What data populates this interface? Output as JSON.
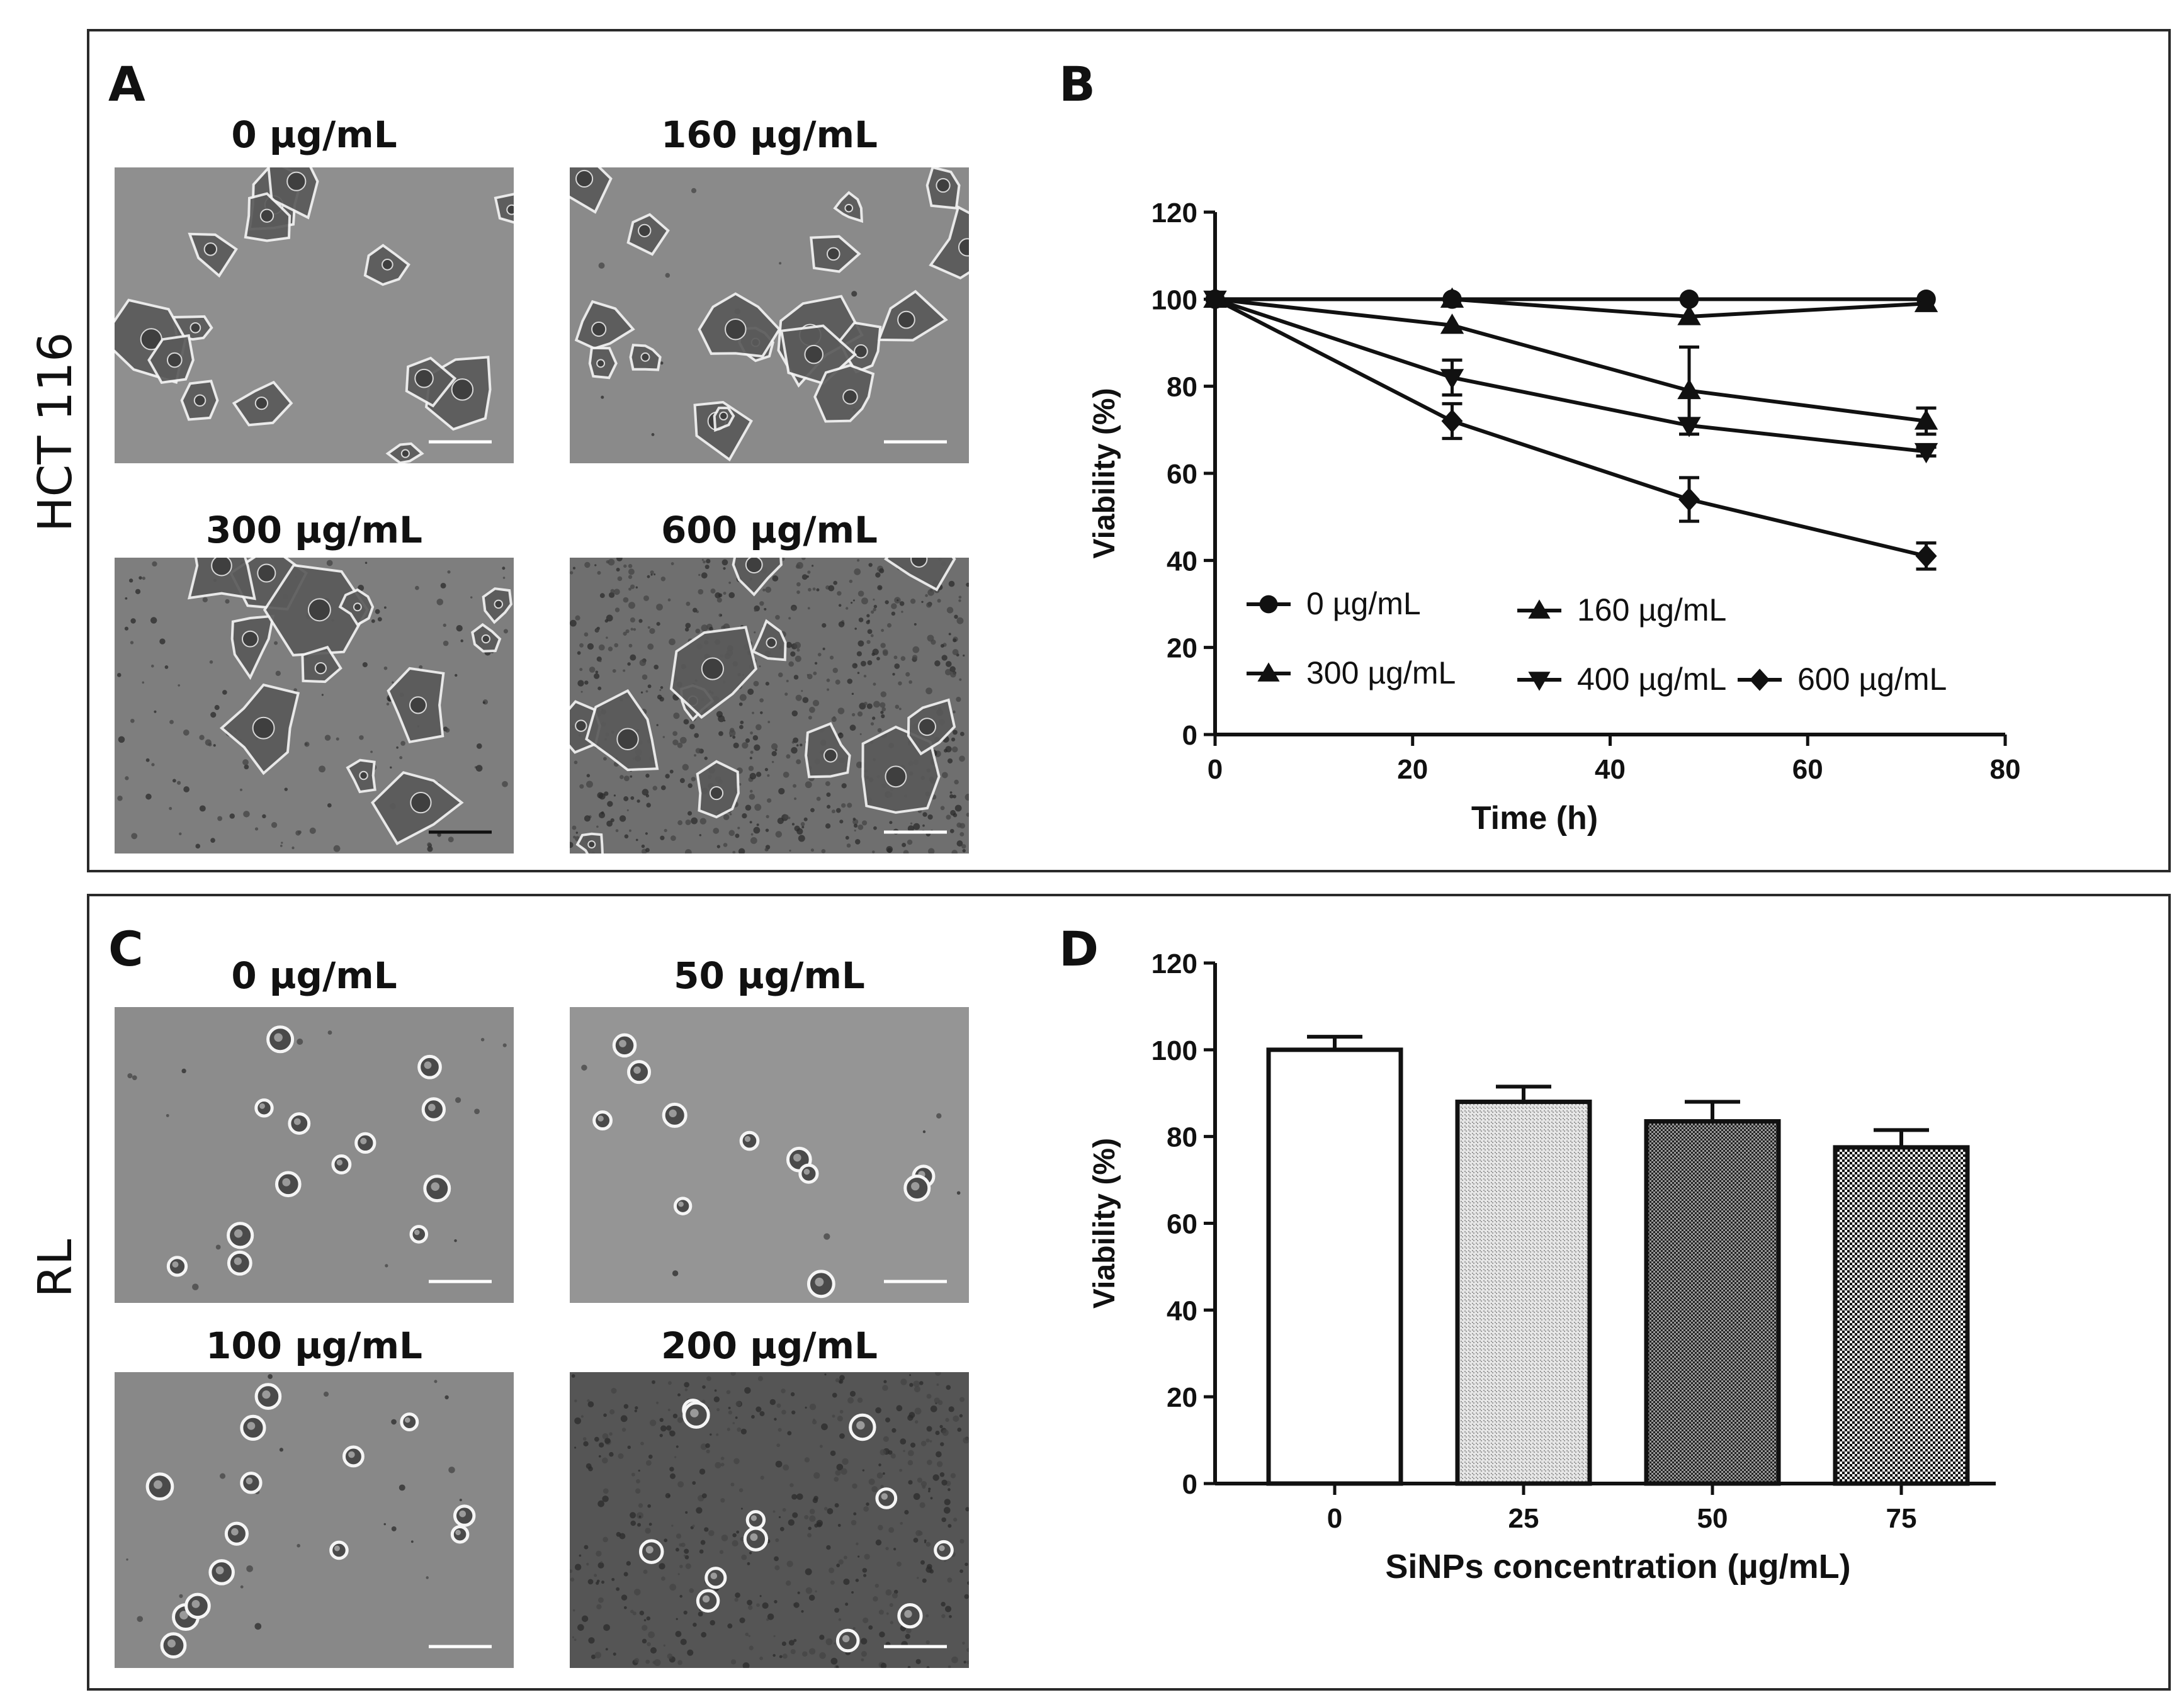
{
  "rows": [
    {
      "cell_line": "HCT 116"
    },
    {
      "cell_line": "RL"
    }
  ],
  "panels": {
    "A": {
      "letter": "A",
      "images": [
        {
          "label": "0 µg/mL"
        },
        {
          "label": "160 µg/mL"
        },
        {
          "label": "300 µg/mL"
        },
        {
          "label": "600 µg/mL"
        }
      ]
    },
    "B": {
      "letter": "B"
    },
    "C": {
      "letter": "C",
      "images": [
        {
          "label": "0 µg/mL"
        },
        {
          "label": "50 µg/mL"
        },
        {
          "label": "100 µg/mL"
        },
        {
          "label": "200 µg/mL"
        }
      ]
    },
    "D": {
      "letter": "D"
    }
  },
  "chart_data": [
    {
      "id": "B",
      "type": "line",
      "xlabel": "Time (h)",
      "ylabel": "Viability (%)",
      "xlim": [
        0,
        80
      ],
      "ylim": [
        0,
        120
      ],
      "xticks": [
        0,
        20,
        40,
        60,
        80
      ],
      "yticks": [
        0,
        20,
        40,
        60,
        80,
        100,
        120
      ],
      "x": [
        0,
        24,
        48,
        72
      ],
      "series": [
        {
          "name": "0 µg/mL",
          "marker": "circle",
          "values": [
            100,
            100,
            100,
            100
          ],
          "err": [
            0,
            0,
            0,
            0
          ]
        },
        {
          "name": "160 µg/mL",
          "marker": "triangle-up",
          "values": [
            100,
            100,
            96,
            99
          ],
          "err": [
            0,
            0,
            0,
            0
          ]
        },
        {
          "name": "300 µg/mL",
          "marker": "triangle-up",
          "values": [
            100,
            94,
            79,
            72
          ],
          "err": [
            0,
            0,
            10,
            3
          ]
        },
        {
          "name": "400 µg/mL",
          "marker": "triangle-down",
          "values": [
            100,
            82,
            71,
            65
          ],
          "err": [
            0,
            4,
            0,
            1
          ]
        },
        {
          "name": "600 µg/mL",
          "marker": "diamond",
          "values": [
            100,
            72,
            54,
            41
          ],
          "err": [
            0,
            4,
            5,
            3
          ]
        }
      ],
      "grid": false,
      "legend_position": "bottom-left inside"
    },
    {
      "id": "D",
      "type": "bar",
      "xlabel": "SiNPs concentration (µg/mL)",
      "ylabel": "Viability (%)",
      "categories": [
        "0",
        "25",
        "50",
        "75"
      ],
      "values": [
        100,
        88,
        83.5,
        77.5
      ],
      "err": [
        3,
        3.5,
        4.5,
        4
      ],
      "patterns": [
        "white",
        "light-dots",
        "medium-checker",
        "dense-checker"
      ],
      "ylim": [
        0,
        120
      ],
      "yticks": [
        0,
        20,
        40,
        60,
        80,
        100,
        120
      ],
      "grid": false
    }
  ]
}
